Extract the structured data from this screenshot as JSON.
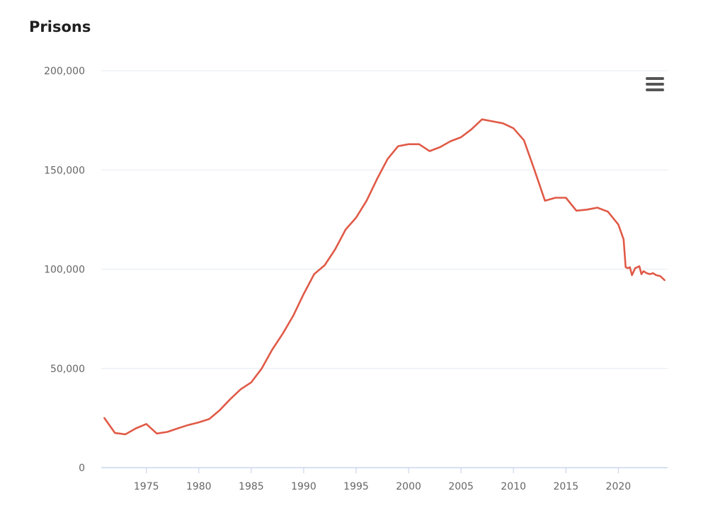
{
  "title": "Prisons",
  "menu": {
    "icon": "hamburger-menu-icon"
  },
  "colors": {
    "line": "#e05a47",
    "grid": "#e9edf2",
    "axis": "#ccd6eb",
    "text": "#666666"
  },
  "chart_data": {
    "type": "line",
    "title": "Prisons",
    "xlabel": "",
    "ylabel": "",
    "xlim": [
      1970.7,
      2024.7
    ],
    "ylim": [
      0,
      200000
    ],
    "grid": "horizontal",
    "x_ticks": [
      1975,
      1980,
      1985,
      1990,
      1995,
      2000,
      2005,
      2010,
      2015,
      2020
    ],
    "y_ticks": [
      0,
      50000,
      100000,
      150000,
      200000
    ],
    "y_tick_labels": [
      "0",
      "50,000",
      "100,000",
      "150,000",
      "200,000"
    ],
    "series": [
      {
        "color": "#e05a47",
        "points": [
          [
            1971,
            25000
          ],
          [
            1972,
            17500
          ],
          [
            1973,
            16800
          ],
          [
            1974,
            19800
          ],
          [
            1975,
            22000
          ],
          [
            1976,
            17200
          ],
          [
            1977,
            18000
          ],
          [
            1978,
            19800
          ],
          [
            1979,
            21500
          ],
          [
            1980,
            22800
          ],
          [
            1981,
            24500
          ],
          [
            1982,
            29000
          ],
          [
            1983,
            34500
          ],
          [
            1984,
            39500
          ],
          [
            1985,
            43000
          ],
          [
            1986,
            50000
          ],
          [
            1987,
            59500
          ],
          [
            1988,
            67500
          ],
          [
            1989,
            76500
          ],
          [
            1990,
            87500
          ],
          [
            1991,
            97500
          ],
          [
            1992,
            102000
          ],
          [
            1993,
            110000
          ],
          [
            1994,
            120000
          ],
          [
            1995,
            126000
          ],
          [
            1996,
            134500
          ],
          [
            1997,
            145500
          ],
          [
            1998,
            155500
          ],
          [
            1999,
            162000
          ],
          [
            2000,
            163000
          ],
          [
            2001,
            163000
          ],
          [
            2002,
            159500
          ],
          [
            2003,
            161500
          ],
          [
            2004,
            164500
          ],
          [
            2005,
            166500
          ],
          [
            2006,
            170500
          ],
          [
            2007,
            175500
          ],
          [
            2008,
            174500
          ],
          [
            2009,
            173500
          ],
          [
            2010,
            171000
          ],
          [
            2011,
            165000
          ],
          [
            2012,
            150000
          ],
          [
            2013,
            134500
          ],
          [
            2014,
            136000
          ],
          [
            2015,
            136000
          ],
          [
            2016,
            129500
          ],
          [
            2017,
            130000
          ],
          [
            2018,
            131000
          ],
          [
            2019,
            129000
          ],
          [
            2020,
            122500
          ],
          [
            2020.5,
            115000
          ],
          [
            2020.7,
            101000
          ],
          [
            2020.9,
            100500
          ],
          [
            2021.1,
            101000
          ],
          [
            2021.3,
            97000
          ],
          [
            2021.6,
            100500
          ],
          [
            2022.0,
            101500
          ],
          [
            2022.2,
            97500
          ],
          [
            2022.4,
            99000
          ],
          [
            2022.7,
            98000
          ],
          [
            2023.0,
            97500
          ],
          [
            2023.3,
            98000
          ],
          [
            2023.6,
            97000
          ],
          [
            2024.0,
            96500
          ],
          [
            2024.4,
            94500
          ]
        ]
      }
    ]
  }
}
